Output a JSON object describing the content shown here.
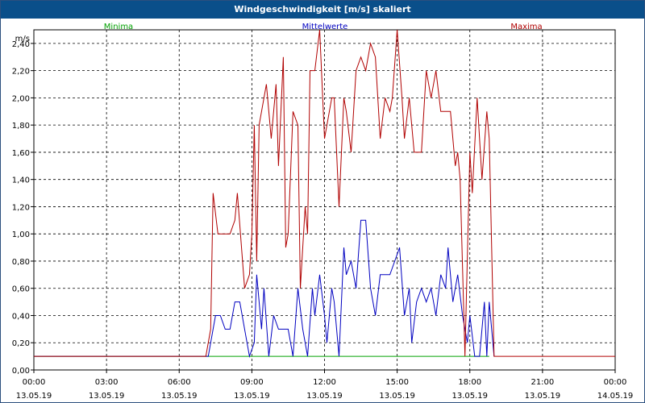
{
  "window": {
    "title": "Windgeschwindigkeit [m/s] skaliert"
  },
  "chart_data": {
    "type": "line",
    "title": "Windgeschwindigkeit [m/s] skaliert",
    "ylabel": "m/s",
    "ylim": [
      0,
      2.5
    ],
    "xlim": [
      0,
      24
    ],
    "grid": true,
    "legend_placement": "top",
    "y_ticks": [
      "0,00",
      "0,20",
      "0,40",
      "0,60",
      "0,80",
      "1,00",
      "1,20",
      "1,40",
      "1,60",
      "1,80",
      "2,00",
      "2,20",
      "2,40"
    ],
    "x_ticks": [
      {
        "time": "00:00",
        "date": "13.05.19"
      },
      {
        "time": "03:00",
        "date": "13.05.19"
      },
      {
        "time": "06:00",
        "date": "13.05.19"
      },
      {
        "time": "09:00",
        "date": "13.05.19"
      },
      {
        "time": "12:00",
        "date": "13.05.19"
      },
      {
        "time": "15:00",
        "date": "13.05.19"
      },
      {
        "time": "18:00",
        "date": "13.05.19"
      },
      {
        "time": "21:00",
        "date": "13.05.19"
      },
      {
        "time": "00:00",
        "date": "14.05.19"
      }
    ],
    "series": [
      {
        "name": "Minima",
        "color": "#00a000",
        "points": [
          [
            0,
            0.1
          ],
          [
            7.2,
            0.1
          ],
          [
            18.8,
            0.1
          ]
        ]
      },
      {
        "name": "Mittelwerte",
        "color": "#0000c0",
        "points": [
          [
            0,
            0.1
          ],
          [
            7.2,
            0.1
          ],
          [
            7.5,
            0.4
          ],
          [
            7.7,
            0.4
          ],
          [
            7.9,
            0.3
          ],
          [
            8.1,
            0.3
          ],
          [
            8.3,
            0.5
          ],
          [
            8.5,
            0.5
          ],
          [
            8.7,
            0.3
          ],
          [
            8.9,
            0.1
          ],
          [
            9.1,
            0.2
          ],
          [
            9.2,
            0.7
          ],
          [
            9.4,
            0.3
          ],
          [
            9.5,
            0.6
          ],
          [
            9.7,
            0.1
          ],
          [
            9.9,
            0.4
          ],
          [
            10.1,
            0.3
          ],
          [
            10.3,
            0.3
          ],
          [
            10.5,
            0.3
          ],
          [
            10.7,
            0.1
          ],
          [
            10.9,
            0.6
          ],
          [
            11.1,
            0.3
          ],
          [
            11.3,
            0.1
          ],
          [
            11.5,
            0.6
          ],
          [
            11.6,
            0.4
          ],
          [
            11.8,
            0.7
          ],
          [
            12.0,
            0.4
          ],
          [
            12.1,
            0.2
          ],
          [
            12.3,
            0.6
          ],
          [
            12.4,
            0.5
          ],
          [
            12.6,
            0.1
          ],
          [
            12.8,
            0.9
          ],
          [
            12.9,
            0.7
          ],
          [
            13.1,
            0.8
          ],
          [
            13.3,
            0.6
          ],
          [
            13.5,
            1.1
          ],
          [
            13.7,
            1.1
          ],
          [
            13.9,
            0.6
          ],
          [
            14.1,
            0.4
          ],
          [
            14.3,
            0.7
          ],
          [
            14.5,
            0.7
          ],
          [
            14.7,
            0.7
          ],
          [
            14.9,
            0.8
          ],
          [
            15.1,
            0.9
          ],
          [
            15.3,
            0.4
          ],
          [
            15.5,
            0.6
          ],
          [
            15.6,
            0.2
          ],
          [
            15.8,
            0.5
          ],
          [
            16.0,
            0.6
          ],
          [
            16.2,
            0.5
          ],
          [
            16.4,
            0.6
          ],
          [
            16.6,
            0.4
          ],
          [
            16.8,
            0.7
          ],
          [
            17.0,
            0.6
          ],
          [
            17.1,
            0.9
          ],
          [
            17.3,
            0.5
          ],
          [
            17.5,
            0.7
          ],
          [
            17.7,
            0.4
          ],
          [
            17.9,
            0.2
          ],
          [
            18.0,
            0.4
          ],
          [
            18.2,
            0.1
          ],
          [
            18.4,
            0.1
          ],
          [
            18.6,
            0.5
          ],
          [
            18.7,
            0.1
          ],
          [
            18.8,
            0.5
          ],
          [
            19.0,
            0.1
          ]
        ]
      },
      {
        "name": "Maxima",
        "color": "#b00000",
        "points": [
          [
            0,
            0.1
          ],
          [
            7.1,
            0.1
          ],
          [
            7.3,
            0.3
          ],
          [
            7.4,
            1.3
          ],
          [
            7.6,
            1.0
          ],
          [
            8.1,
            1.0
          ],
          [
            8.3,
            1.1
          ],
          [
            8.4,
            1.3
          ],
          [
            8.7,
            0.6
          ],
          [
            8.9,
            0.7
          ],
          [
            9.0,
            1.0
          ],
          [
            9.1,
            1.8
          ],
          [
            9.2,
            0.8
          ],
          [
            9.3,
            1.8
          ],
          [
            9.6,
            2.1
          ],
          [
            9.8,
            1.7
          ],
          [
            10.0,
            2.1
          ],
          [
            10.1,
            1.5
          ],
          [
            10.3,
            2.3
          ],
          [
            10.4,
            0.9
          ],
          [
            10.5,
            1.0
          ],
          [
            10.7,
            1.9
          ],
          [
            10.9,
            1.8
          ],
          [
            11.0,
            0.6
          ],
          [
            11.2,
            1.2
          ],
          [
            11.3,
            1.0
          ],
          [
            11.4,
            2.2
          ],
          [
            11.6,
            2.2
          ],
          [
            11.8,
            2.5
          ],
          [
            12.0,
            1.7
          ],
          [
            12.1,
            1.8
          ],
          [
            12.3,
            2.0
          ],
          [
            12.4,
            2.0
          ],
          [
            12.6,
            1.2
          ],
          [
            12.8,
            2.0
          ],
          [
            12.9,
            1.9
          ],
          [
            13.1,
            1.6
          ],
          [
            13.3,
            2.2
          ],
          [
            13.5,
            2.3
          ],
          [
            13.7,
            2.2
          ],
          [
            13.9,
            2.4
          ],
          [
            14.1,
            2.3
          ],
          [
            14.3,
            1.7
          ],
          [
            14.5,
            2.0
          ],
          [
            14.7,
            1.9
          ],
          [
            14.8,
            2.0
          ],
          [
            15.0,
            2.5
          ],
          [
            15.2,
            2.0
          ],
          [
            15.3,
            1.7
          ],
          [
            15.5,
            2.0
          ],
          [
            15.7,
            1.6
          ],
          [
            16.0,
            1.6
          ],
          [
            16.2,
            2.2
          ],
          [
            16.4,
            2.0
          ],
          [
            16.6,
            2.2
          ],
          [
            16.8,
            1.9
          ],
          [
            17.2,
            1.9
          ],
          [
            17.4,
            1.5
          ],
          [
            17.5,
            1.6
          ],
          [
            17.6,
            1.4
          ],
          [
            17.8,
            0.1
          ],
          [
            18.0,
            1.6
          ],
          [
            18.1,
            1.3
          ],
          [
            18.3,
            2.0
          ],
          [
            18.5,
            1.4
          ],
          [
            18.7,
            1.9
          ],
          [
            18.8,
            1.7
          ],
          [
            19.0,
            0.1
          ],
          [
            24,
            0.1
          ]
        ]
      }
    ]
  }
}
